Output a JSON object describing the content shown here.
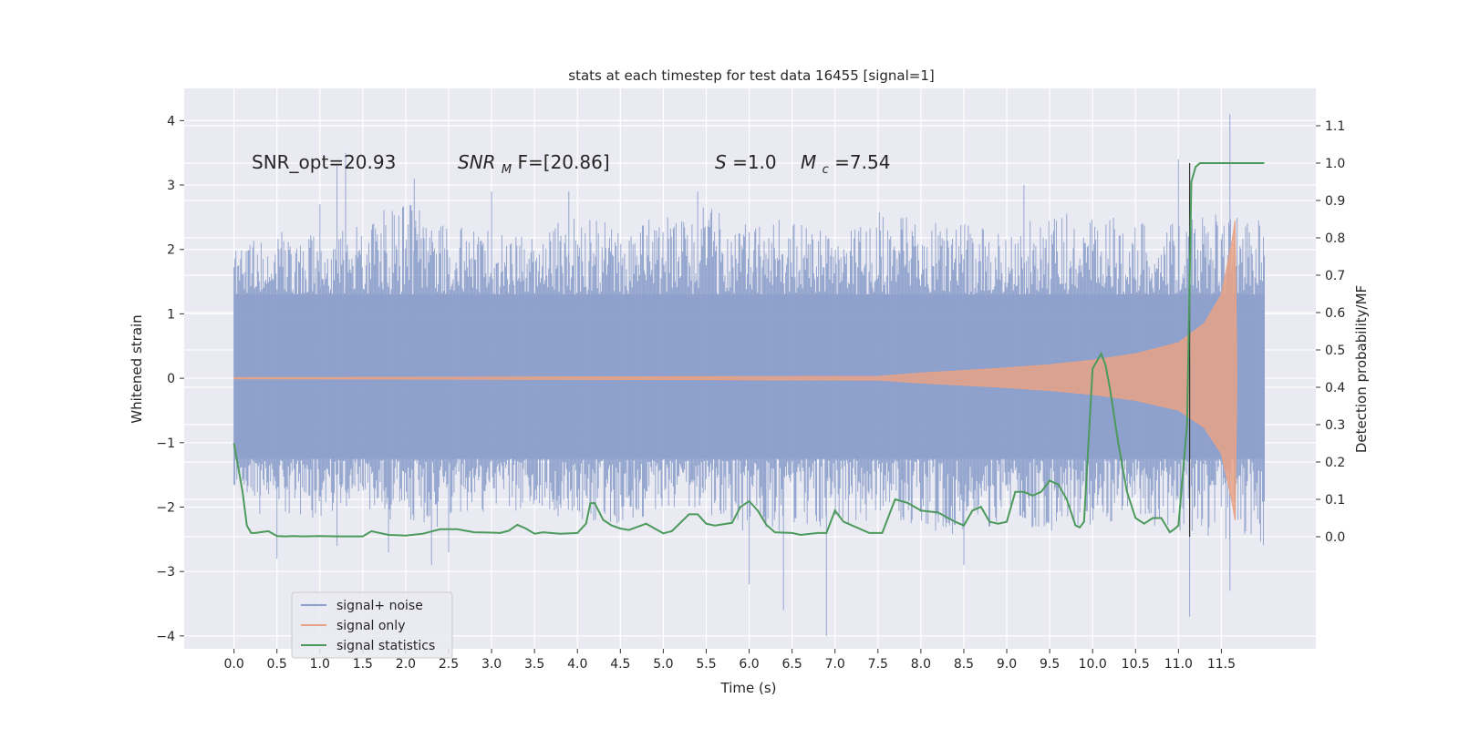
{
  "chart_data": {
    "type": "line",
    "title": "stats at each timestep for test data 16455 [signal=1]",
    "xlabel": "Time (s)",
    "ylabel": "Whitened strain",
    "ylabel_right": "Detection probability/MF",
    "xlim": [
      -0.58,
      12.6
    ],
    "ylim": [
      -4.2,
      4.5
    ],
    "ylim_right": [
      -0.3,
      1.2
    ],
    "xticks": [
      "0.0",
      "0.5",
      "1.0",
      "1.5",
      "2.0",
      "2.5",
      "3.0",
      "3.5",
      "4.0",
      "4.5",
      "5.0",
      "5.5",
      "6.0",
      "6.5",
      "7.0",
      "7.5",
      "8.0",
      "8.5",
      "9.0",
      "9.5",
      "10.0",
      "10.5",
      "11.0",
      "11.5"
    ],
    "yticks": [
      "4",
      "3",
      "2",
      "1",
      "0",
      "−1",
      "−2",
      "−3",
      "−4"
    ],
    "yticks_right": [
      "1.1",
      "1.0",
      "0.9",
      "0.8",
      "0.7",
      "0.6",
      "0.5",
      "0.4",
      "0.3",
      "0.2",
      "0.1",
      "0.0"
    ],
    "legend_position": "lower-left",
    "annotations": {
      "snr_opt": "SNR_opt=20.93",
      "snr_mf_main": "SNR",
      "snr_mf_sub": "M",
      "snr_mf_rest": "F=[20.86]",
      "s_main": "S",
      "s_rest": "=1.0",
      "mc_main": "M",
      "mc_sub": "c",
      "mc_rest": "=7.54"
    },
    "detection_time": 11.13,
    "series": [
      {
        "name": "signal+ noise",
        "color": "#8da0cb",
        "t_range": [
          0.0,
          12.0
        ],
        "core_band": [
          -1.25,
          1.3
        ],
        "envelope_upper": [
          2.1,
          2.3,
          2.2,
          2.5,
          2.8,
          2.4,
          2.3,
          2.2,
          2.6,
          2.4,
          2.5,
          2.7,
          2.4,
          2.5,
          2.2,
          2.6,
          2.5,
          2.4,
          2.3,
          2.6,
          2.5,
          2.5,
          2.4,
          2.6,
          2.5
        ],
        "envelope_lower": [
          -1.7,
          -2.1,
          -2.2,
          -2.0,
          -2.3,
          -2.4,
          -2.0,
          -2.1,
          -2.2,
          -2.3,
          -2.1,
          -2.2,
          -2.4,
          -2.5,
          -2.3,
          -2.2,
          -2.4,
          -2.5,
          -2.2,
          -2.4,
          -2.3,
          -2.2,
          -2.4,
          -2.5,
          -2.6
        ],
        "spikes": [
          [
            0.3,
            -2.1
          ],
          [
            0.5,
            -2.8
          ],
          [
            1.0,
            2.7
          ],
          [
            1.2,
            3.3
          ],
          [
            1.3,
            3.5
          ],
          [
            1.2,
            -2.6
          ],
          [
            1.8,
            -2.7
          ],
          [
            2.1,
            3.1
          ],
          [
            2.3,
            -2.9
          ],
          [
            2.5,
            -2.7
          ],
          [
            3.0,
            2.9
          ],
          [
            3.9,
            2.9
          ],
          [
            5.4,
            2.9
          ],
          [
            6.0,
            -3.2
          ],
          [
            6.4,
            -3.6
          ],
          [
            6.9,
            -4.0
          ],
          [
            8.5,
            -2.9
          ],
          [
            9.2,
            3.0
          ],
          [
            11.0,
            3.4
          ],
          [
            11.13,
            -3.7
          ],
          [
            11.6,
            4.1
          ],
          [
            11.6,
            -3.3
          ]
        ]
      },
      {
        "name": "signal only",
        "color": "#e8a285",
        "t_range": [
          0.0,
          11.68
        ],
        "amplitude": [
          [
            0.0,
            0.01
          ],
          [
            7.5,
            0.03
          ],
          [
            8.0,
            0.08
          ],
          [
            8.5,
            0.12
          ],
          [
            9.0,
            0.16
          ],
          [
            9.5,
            0.21
          ],
          [
            10.0,
            0.28
          ],
          [
            10.5,
            0.38
          ],
          [
            11.0,
            0.55
          ],
          [
            11.3,
            0.85
          ],
          [
            11.5,
            1.3
          ],
          [
            11.62,
            2.1
          ],
          [
            11.66,
            2.45
          ],
          [
            11.68,
            0.0
          ]
        ]
      },
      {
        "name": "signal statistics",
        "color": "#4c9a5b",
        "axis": "right",
        "x": [
          0.0,
          0.1,
          0.15,
          0.2,
          0.25,
          0.3,
          0.4,
          0.5,
          0.6,
          0.7,
          0.8,
          1.0,
          1.2,
          1.4,
          1.5,
          1.6,
          1.8,
          2.0,
          2.2,
          2.4,
          2.6,
          2.8,
          3.0,
          3.1,
          3.2,
          3.3,
          3.4,
          3.5,
          3.6,
          3.8,
          4.0,
          4.1,
          4.15,
          4.2,
          4.3,
          4.4,
          4.5,
          4.6,
          4.8,
          5.0,
          5.1,
          5.3,
          5.4,
          5.5,
          5.6,
          5.8,
          5.9,
          6.0,
          6.1,
          6.2,
          6.3,
          6.5,
          6.6,
          6.8,
          6.9,
          7.0,
          7.1,
          7.3,
          7.4,
          7.55,
          7.7,
          7.85,
          8.0,
          8.2,
          8.4,
          8.5,
          8.6,
          8.7,
          8.8,
          8.9,
          9.0,
          9.1,
          9.2,
          9.3,
          9.4,
          9.5,
          9.6,
          9.7,
          9.8,
          9.85,
          9.9,
          10.0,
          10.05,
          10.1,
          10.15,
          10.2,
          10.3,
          10.4,
          10.5,
          10.6,
          10.7,
          10.8,
          10.9,
          10.95,
          11.0,
          11.1,
          11.15,
          11.2,
          11.25,
          11.3,
          11.4,
          11.5,
          11.6,
          11.7,
          11.8,
          11.9,
          12.0
        ],
        "values": [
          0.25,
          0.12,
          0.03,
          0.01,
          0.01,
          0.012,
          0.015,
          0.002,
          0.001,
          0.002,
          0.001,
          0.002,
          0.001,
          0.001,
          0.001,
          0.015,
          0.005,
          0.003,
          0.008,
          0.02,
          0.02,
          0.012,
          0.011,
          0.01,
          0.016,
          0.032,
          0.022,
          0.008,
          0.012,
          0.008,
          0.01,
          0.035,
          0.09,
          0.09,
          0.045,
          0.03,
          0.022,
          0.018,
          0.035,
          0.009,
          0.015,
          0.06,
          0.06,
          0.035,
          0.03,
          0.037,
          0.08,
          0.095,
          0.07,
          0.032,
          0.012,
          0.01,
          0.005,
          0.01,
          0.01,
          0.07,
          0.04,
          0.02,
          0.01,
          0.01,
          0.1,
          0.09,
          0.07,
          0.065,
          0.04,
          0.03,
          0.07,
          0.08,
          0.04,
          0.035,
          0.04,
          0.12,
          0.12,
          0.11,
          0.12,
          0.15,
          0.14,
          0.1,
          0.03,
          0.025,
          0.04,
          0.45,
          0.47,
          0.49,
          0.46,
          0.4,
          0.25,
          0.12,
          0.05,
          0.035,
          0.05,
          0.05,
          0.012,
          0.02,
          0.03,
          0.3,
          0.95,
          0.99,
          1.0,
          1.0,
          1.0,
          1.0,
          1.0,
          1.0,
          1.0,
          1.0,
          1.0
        ]
      }
    ]
  }
}
